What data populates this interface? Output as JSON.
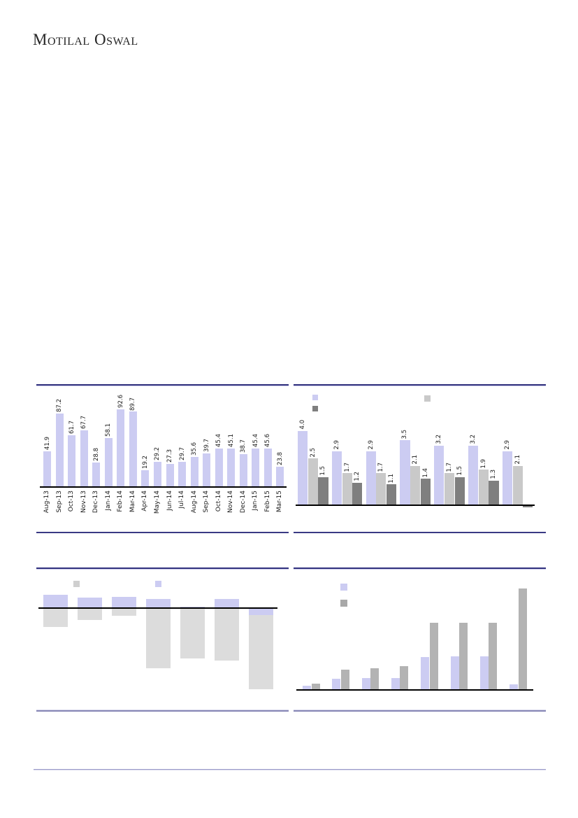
{
  "page": {
    "logo_text": "Motilal Oswal"
  },
  "colors": {
    "lavender": "#CCCCF2",
    "light_gray": "#C9C9C9",
    "dark_gray": "#7F7F7F",
    "soft_gray": "#DCDCDC",
    "mid_gray": "#B3B3B3",
    "legend_gray_c3": "#CFCFCF",
    "legend_gray_c4": "#A8A8A8",
    "panel_border": "#32327E",
    "axis": "#000000",
    "footer_rule": "#9A9AC8"
  },
  "chart_data": [
    {
      "id": "monthly-bar-chart",
      "type": "bar",
      "title": "",
      "xlabel": "",
      "ylabel": "",
      "categories": [
        "Aug-13",
        "Sep-13",
        "Oct-13",
        "Nov-13",
        "Dec-13",
        "Jan-14",
        "Feb-14",
        "Mar-14",
        "Apr-14",
        "May-14",
        "Jun-14",
        "Jul-14",
        "Aug-14",
        "Sep-14",
        "Oct-14",
        "Nov-14",
        "Dec-14",
        "Jan-15",
        "Feb-15",
        "Mar-15"
      ],
      "values": [
        41.9,
        87.2,
        61.7,
        67.7,
        28.8,
        58.1,
        92.6,
        89.7,
        19.2,
        29.2,
        27.3,
        29.7,
        35.6,
        39.7,
        45.4,
        45.1,
        38.7,
        45.4,
        45.6,
        23.8
      ],
      "bar_color": "#CCCCF2",
      "data_labels": true,
      "ylim": [
        0,
        100
      ],
      "grid": false
    },
    {
      "id": "grouped-bar-3-series",
      "type": "bar",
      "title": "",
      "categories": [
        "",
        "",
        "",
        "",
        "",
        "",
        ""
      ],
      "series": [
        {
          "name": "series-lavender",
          "color": "#CCCCF2",
          "values": [
            4.0,
            2.9,
            2.9,
            3.5,
            3.2,
            3.2,
            2.9
          ]
        },
        {
          "name": "series-light-gray",
          "color": "#C9C9C9",
          "values": [
            2.5,
            1.7,
            1.7,
            2.1,
            1.7,
            1.9,
            2.1
          ]
        },
        {
          "name": "series-dark-gray",
          "color": "#7F7F7F",
          "values": [
            1.5,
            1.2,
            1.1,
            1.4,
            1.5,
            1.3,
            -0.1
          ]
        }
      ],
      "data_labels": true,
      "legend": {
        "position": "top",
        "labels_visible": false,
        "swatch_colors": [
          "#CCCCF2",
          "#7F7F7F",
          "#C9C9C9"
        ]
      },
      "ylim": [
        0,
        4.5
      ],
      "grid": false
    },
    {
      "id": "overlapped-posneg-bar",
      "type": "bar",
      "title": "",
      "units": "unlabeled-axis, values estimated in px",
      "categories": [
        "",
        "",
        "",
        "",
        "",
        "",
        ""
      ],
      "overlap": true,
      "series": [
        {
          "name": "series-gray",
          "color": "#DCDCDC",
          "values": [
            -26,
            -16,
            -10,
            -85,
            -71,
            -74,
            -115
          ]
        },
        {
          "name": "series-lavender",
          "color": "#CCCCF2",
          "values": [
            18,
            14,
            15,
            12,
            1,
            12,
            -9
          ]
        }
      ],
      "data_labels": false,
      "legend": {
        "position": "top",
        "labels_visible": false,
        "swatch_colors": [
          "#CFCFCF",
          "#CCCCF2"
        ]
      },
      "grid": false
    },
    {
      "id": "grouped-bar-2-series",
      "type": "bar",
      "title": "",
      "units": "unlabeled-axis, values estimated in px",
      "categories": [
        "",
        "",
        "",
        "",
        "",
        "",
        "",
        ""
      ],
      "series": [
        {
          "name": "series-lavender",
          "color": "#CCCCF2",
          "values": [
            5,
            15,
            16,
            16,
            46,
            47,
            47,
            7
          ]
        },
        {
          "name": "series-gray",
          "color": "#B3B3B3",
          "values": [
            8,
            28,
            30,
            33,
            95,
            95,
            95,
            144
          ]
        }
      ],
      "data_labels": false,
      "legend": {
        "position": "top-left",
        "labels_visible": false,
        "swatch_colors": [
          "#CCCCF2",
          "#A8A8A8"
        ]
      },
      "grid": false
    }
  ]
}
